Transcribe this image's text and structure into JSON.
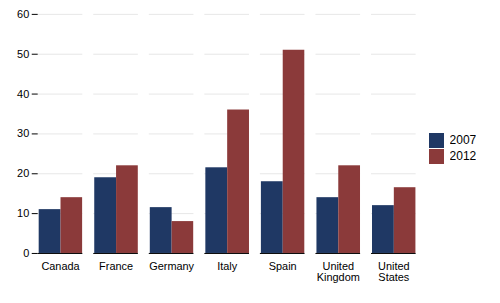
{
  "chart_data": {
    "type": "bar",
    "categories": [
      "Canada",
      "France",
      "Germany",
      "Italy",
      "Spain",
      "United\nKingdom",
      "United\nStates"
    ],
    "series": [
      {
        "name": "2007",
        "color": "#1F3864",
        "values": [
          11,
          19,
          11.5,
          21.5,
          18,
          14,
          12
        ]
      },
      {
        "name": "2012",
        "color": "#8B3A3A",
        "values": [
          14,
          22,
          8,
          36,
          51,
          22,
          16.5
        ]
      }
    ],
    "ylim": [
      0,
      60
    ],
    "yticks": [
      0,
      10,
      20,
      30,
      40,
      50,
      60
    ],
    "grid": true,
    "legend": "right"
  }
}
